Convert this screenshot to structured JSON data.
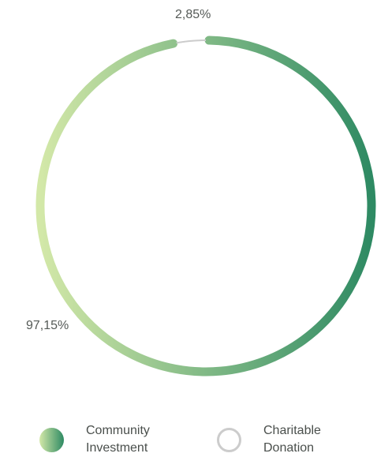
{
  "chart_data": {
    "type": "pie",
    "variant": "donut",
    "slices": [
      {
        "name": "Community Investment",
        "value": 97.15,
        "label": "97,15%"
      },
      {
        "name": "Charitable Donation",
        "value": 2.85,
        "label": "2,85%"
      }
    ],
    "colors": {
      "community_gradient_start": "#d3e8a8",
      "community_gradient_end": "#2e8a63",
      "charitable": "#cccccc"
    },
    "legend": {
      "placement": "bottom",
      "items": [
        {
          "line1": "Community",
          "line2": "Investment"
        },
        {
          "line1": "Charitable",
          "line2": "Donation"
        }
      ]
    }
  }
}
